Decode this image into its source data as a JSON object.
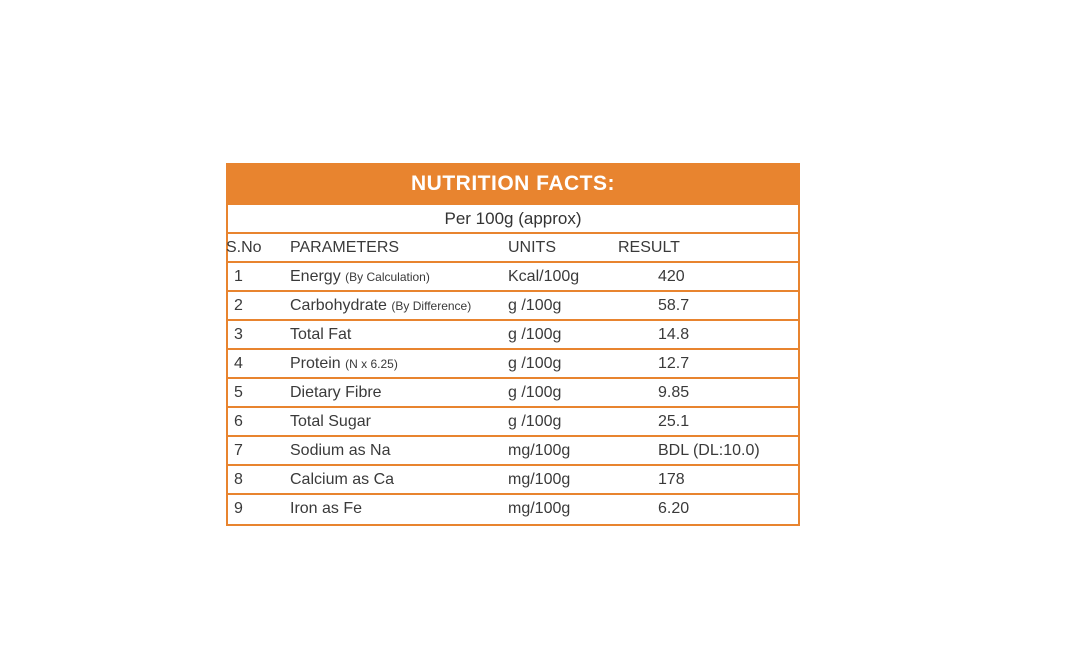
{
  "table": {
    "title": "NUTRITION FACTS:",
    "subtitle": "Per 100g (approx)",
    "headers": {
      "sno": "S.No",
      "parameters": "PARAMETERS",
      "units": "UNITS",
      "result": "RESULT"
    },
    "rows": [
      {
        "sno": "1",
        "parameter": "Energy",
        "note": "(By Calculation)",
        "unit": "Kcal/100g",
        "result": "420"
      },
      {
        "sno": "2",
        "parameter": "Carbohydrate",
        "note": "(By Difference)",
        "unit": "g /100g",
        "result": "58.7"
      },
      {
        "sno": "3",
        "parameter": "Total Fat",
        "note": "",
        "unit": "g /100g",
        "result": "14.8"
      },
      {
        "sno": "4",
        "parameter": "Protein",
        "note": "(N x 6.25)",
        "unit": "g /100g",
        "result": "12.7"
      },
      {
        "sno": "5",
        "parameter": "Dietary Fibre",
        "note": "",
        "unit": "g /100g",
        "result": "9.85"
      },
      {
        "sno": "6",
        "parameter": "Total Sugar",
        "note": "",
        "unit": "g /100g",
        "result": "25.1"
      },
      {
        "sno": "7",
        "parameter": "Sodium as Na",
        "note": "",
        "unit": "mg/100g",
        "result": "BDL (DL:10.0)"
      },
      {
        "sno": "8",
        "parameter": "Calcium as Ca",
        "note": "",
        "unit": "mg/100g",
        "result": "178"
      },
      {
        "sno": "9",
        "parameter": "Iron as Fe",
        "note": "",
        "unit": "mg/100g",
        "result": "6.20"
      }
    ]
  },
  "colors": {
    "accent": "#e8842f",
    "text": "#3a3a3a"
  }
}
